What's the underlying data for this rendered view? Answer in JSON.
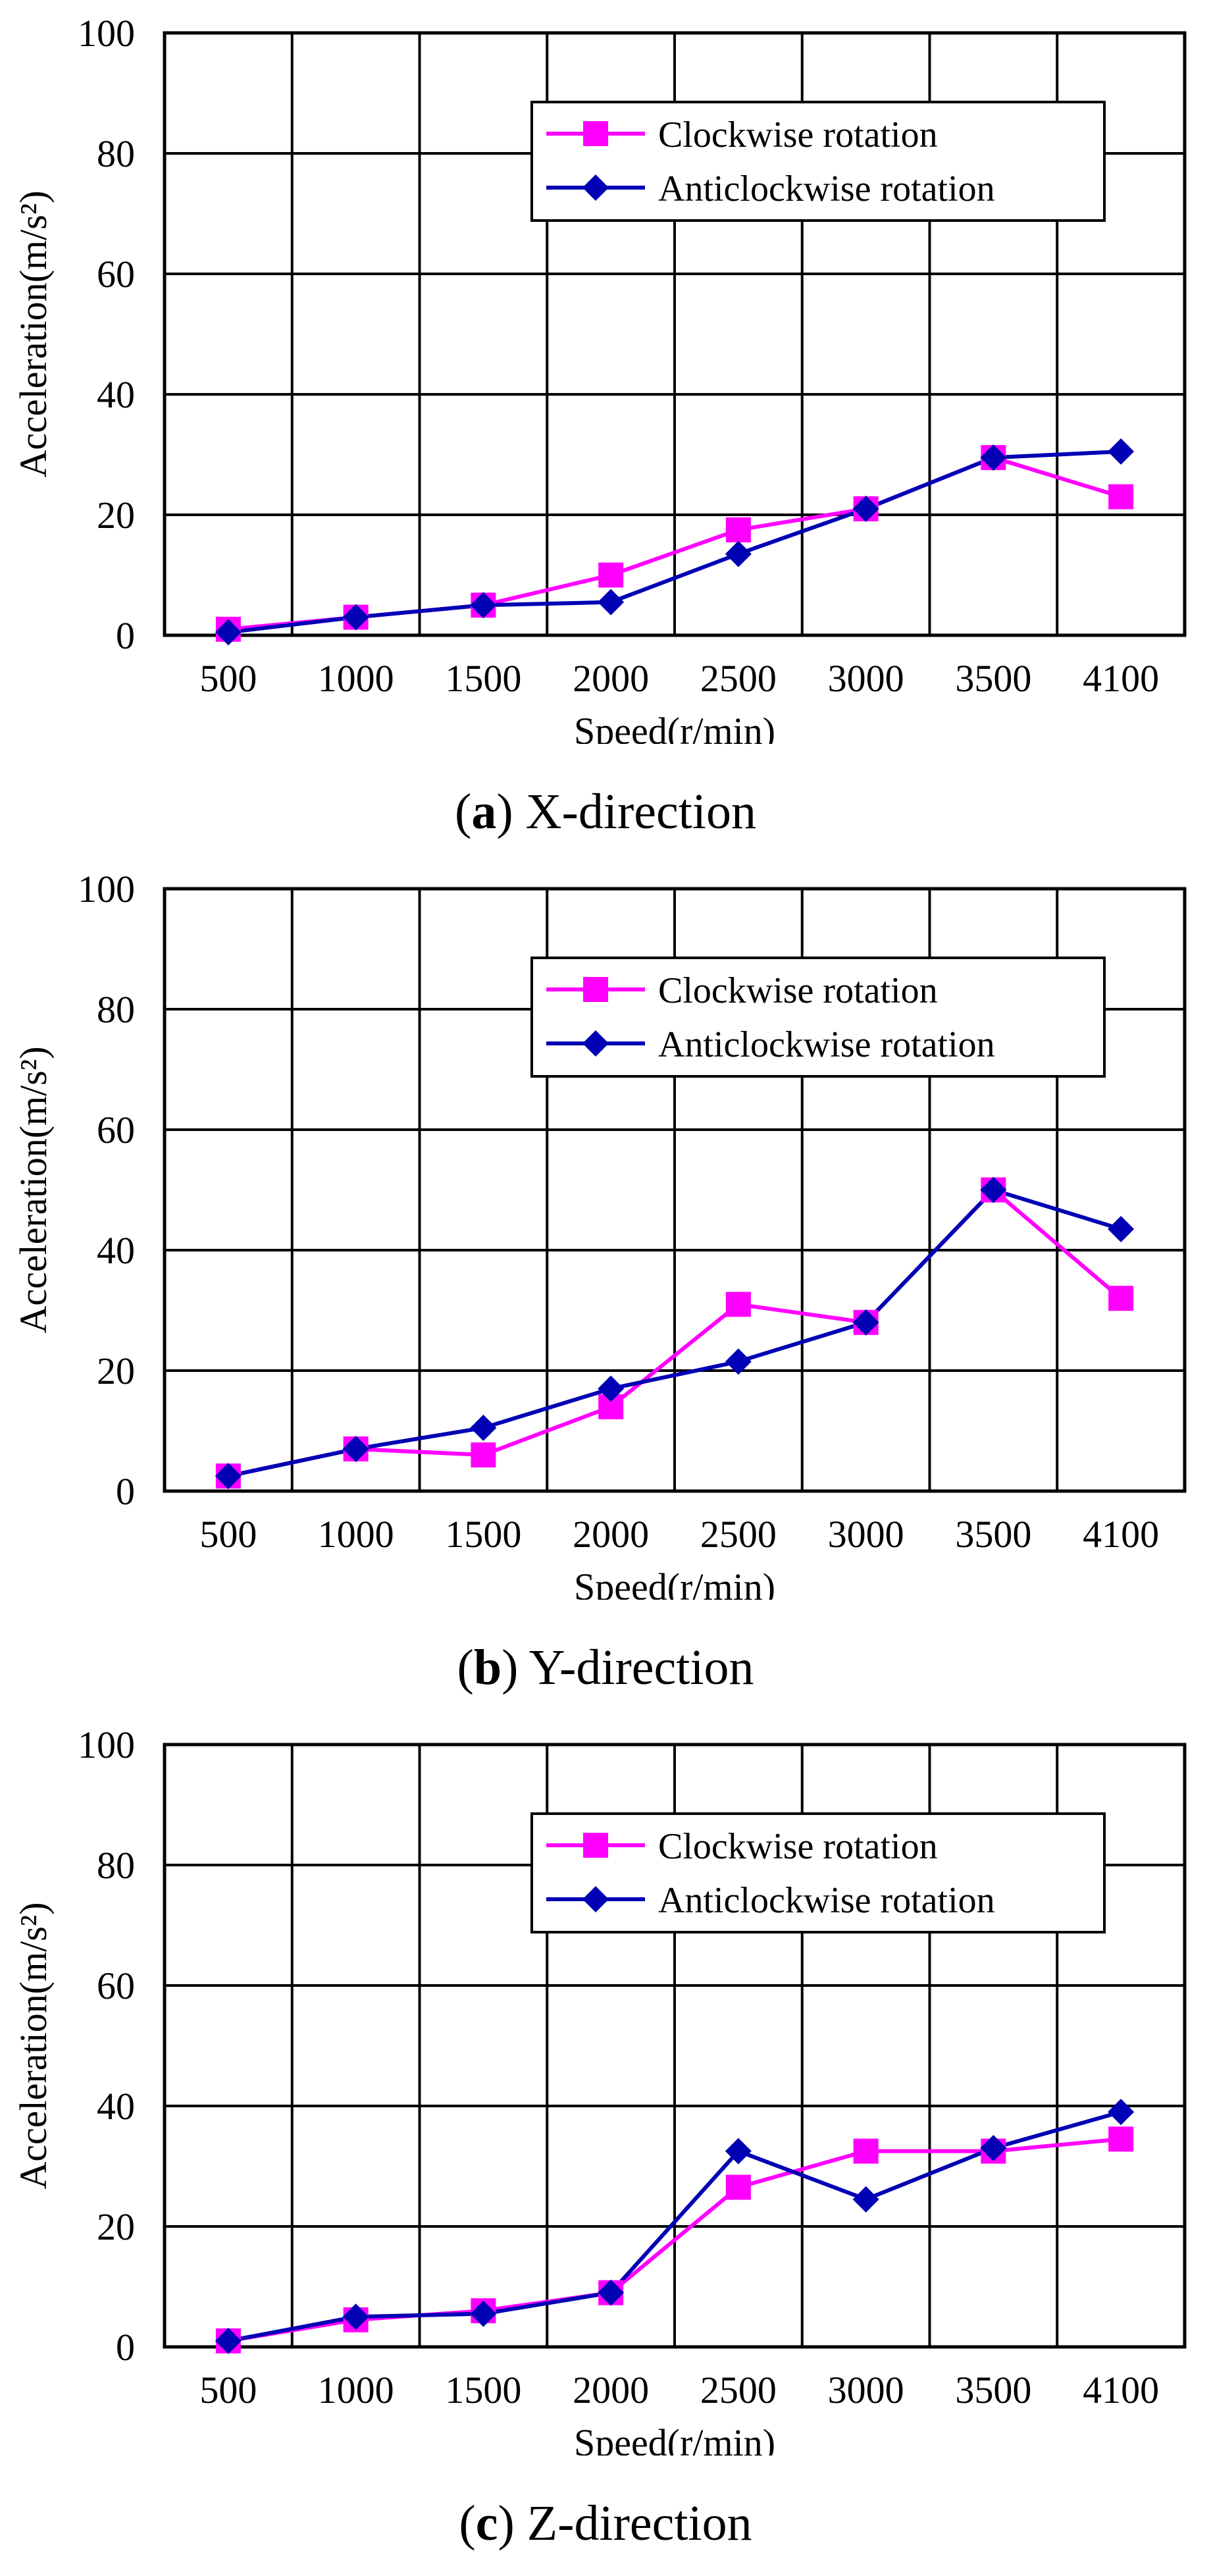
{
  "colors": {
    "clockwise": "#ff00ff",
    "anticlockwise": "#0000b4",
    "grid": "#000000"
  },
  "chart_data": [
    {
      "type": "line",
      "letter": "a",
      "caption": "X-direction",
      "xlabel": "Speed(r/min)",
      "ylabel": "Acceleration(m/s²)",
      "categories": [
        "500",
        "1000",
        "1500",
        "2000",
        "2500",
        "3000",
        "3500",
        "4100"
      ],
      "ylim": [
        0,
        100
      ],
      "yticks": [
        0,
        20,
        40,
        60,
        80,
        100
      ],
      "grid": true,
      "legend_position": "top-right",
      "series": [
        {
          "name": "Clockwise rotation",
          "marker": "square",
          "values": [
            1,
            3,
            5,
            10,
            17.5,
            21,
            29.5,
            23
          ]
        },
        {
          "name": "Anticlockwise rotation",
          "marker": "diamond",
          "values": [
            0.5,
            3,
            5,
            5.5,
            13.5,
            21,
            29.5,
            30.5
          ]
        }
      ]
    },
    {
      "type": "line",
      "letter": "b",
      "caption": "Y-direction",
      "xlabel": "Speed(r/min)",
      "ylabel": "Acceleration(m/s²)",
      "categories": [
        "500",
        "1000",
        "1500",
        "2000",
        "2500",
        "3000",
        "3500",
        "4100"
      ],
      "ylim": [
        0,
        100
      ],
      "yticks": [
        0,
        20,
        40,
        60,
        80,
        100
      ],
      "grid": true,
      "legend_position": "top-right",
      "series": [
        {
          "name": "Clockwise rotation",
          "marker": "square",
          "values": [
            2.5,
            7,
            6,
            14,
            31,
            28,
            50,
            32
          ]
        },
        {
          "name": "Anticlockwise rotation",
          "marker": "diamond",
          "values": [
            2.5,
            7,
            10.5,
            17,
            21.5,
            28,
            50,
            43.5
          ]
        }
      ]
    },
    {
      "type": "line",
      "letter": "c",
      "caption": "Z-direction",
      "xlabel": "Speed(r/min)",
      "ylabel": "Acceleration(m/s²)",
      "categories": [
        "500",
        "1000",
        "1500",
        "2000",
        "2500",
        "3000",
        "3500",
        "4100"
      ],
      "ylim": [
        0,
        100
      ],
      "yticks": [
        0,
        20,
        40,
        60,
        80,
        100
      ],
      "grid": true,
      "legend_position": "top-right",
      "series": [
        {
          "name": "Clockwise rotation",
          "marker": "square",
          "values": [
            1,
            4.5,
            6,
            9,
            26.5,
            32.5,
            32.5,
            34.5
          ]
        },
        {
          "name": "Anticlockwise rotation",
          "marker": "diamond",
          "values": [
            1,
            5,
            5.5,
            9,
            32.5,
            24.5,
            33,
            39
          ]
        }
      ]
    }
  ]
}
